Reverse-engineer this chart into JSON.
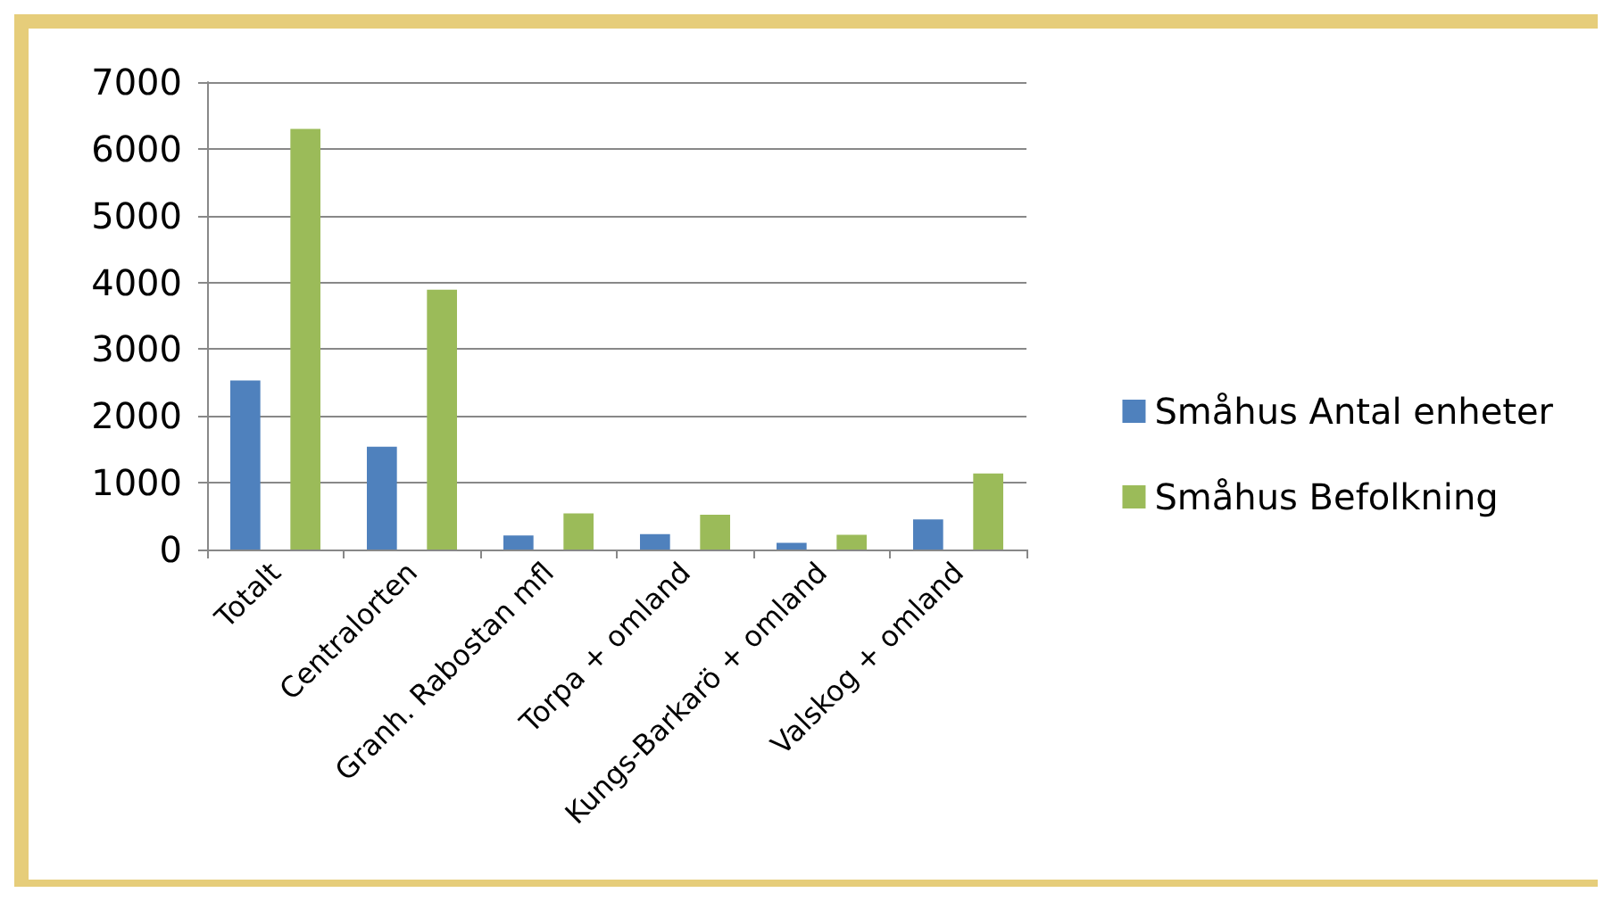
{
  "chart_data": {
    "type": "bar",
    "categories": [
      "Totalt",
      "Centralorten",
      "Granh. Rabostan mfl",
      "Torpa + omland",
      "Kungs-Barkarö + omland",
      "Valskog + omland"
    ],
    "series": [
      {
        "name": "Småhus Antal enheter",
        "color": "#4f81bd",
        "values": [
          2530,
          1540,
          210,
          230,
          100,
          450
        ]
      },
      {
        "name": "Småhus Befolkning",
        "color": "#9bbb59",
        "values": [
          6300,
          3890,
          540,
          520,
          220,
          1140
        ]
      }
    ],
    "ylim": [
      0,
      7000
    ],
    "yticks": [
      0,
      1000,
      2000,
      3000,
      4000,
      5000,
      6000,
      7000
    ],
    "grid": "y",
    "legend": "right"
  }
}
